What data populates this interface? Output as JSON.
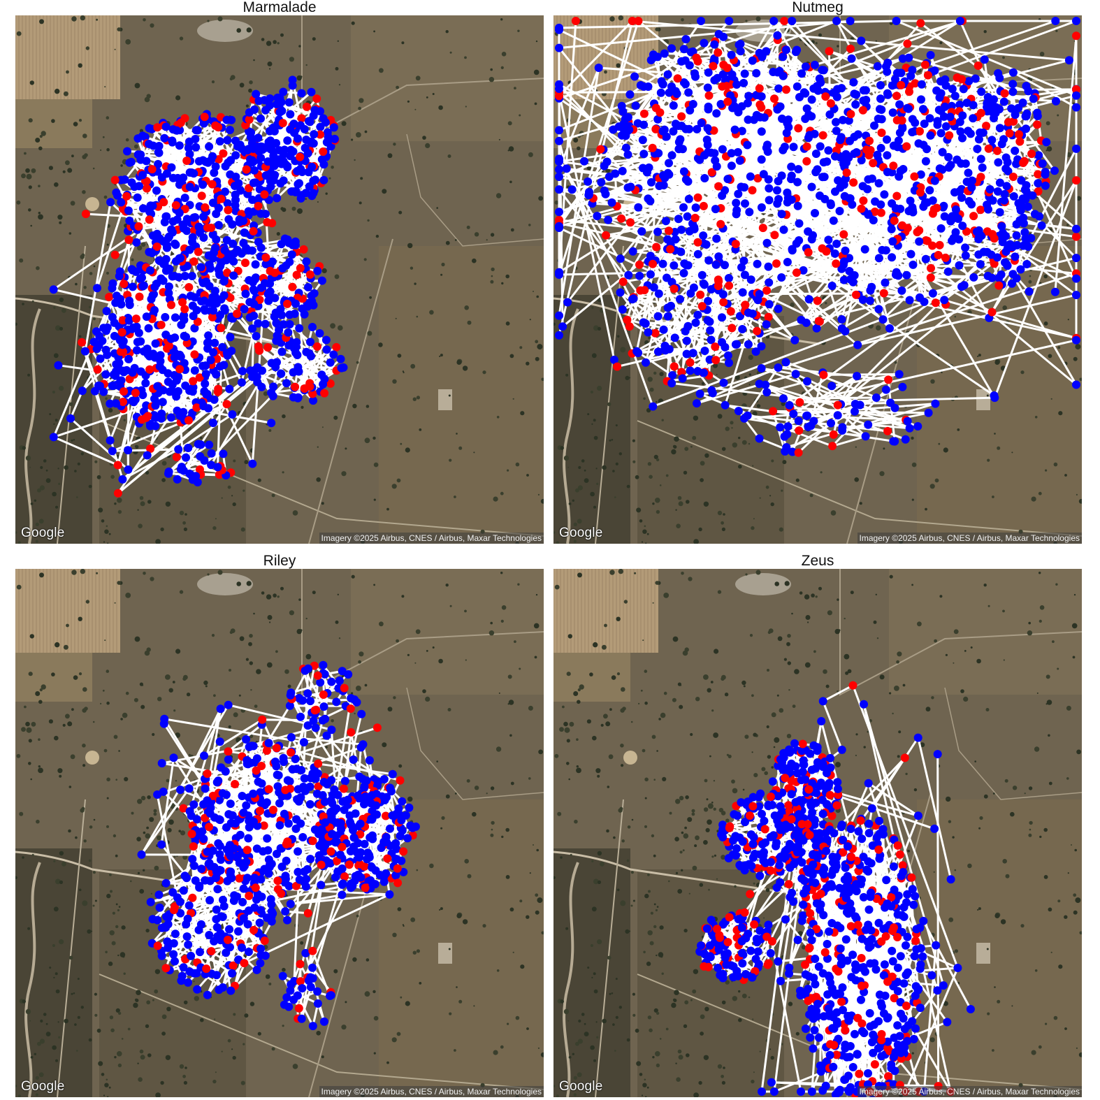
{
  "attribution": "Imagery ©2025 Airbus, CNES / Airbus, Maxar Technologies",
  "logo": "Google",
  "colors": {
    "path_line": "#ffffff",
    "start_fix": "#ff0000",
    "end_fix": "#0000ff",
    "title_text": "#111111"
  },
  "panels": [
    {
      "name": "Marmalade",
      "extent": "northwest and west of paddock, dense cluster west"
    },
    {
      "name": "Nutmeg",
      "extent": "broad coverage across north and centre"
    },
    {
      "name": "Riley",
      "extent": "central-south cluster"
    },
    {
      "name": "Zeus",
      "extent": "central and southeast cluster"
    }
  ]
}
